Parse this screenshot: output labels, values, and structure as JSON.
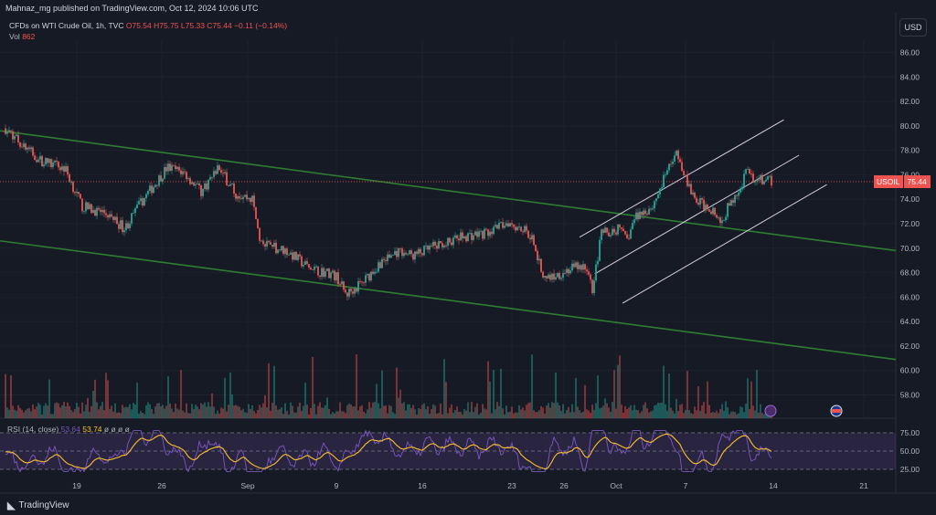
{
  "caption": "Mahnaz_mg published on TradingView.com, Oct 12, 2024 10:06 UTC",
  "legend": {
    "symbol": "CFDs on WTI Crude Oil, 1h, TVC",
    "o": "O75.54",
    "h": "H75.75",
    "l": "L75.33",
    "c": "C75.44",
    "change": "−0.11 (−0.14%)",
    "vol_label": "Vol",
    "vol_value": "862"
  },
  "currency_button": "USD",
  "last_price": {
    "symbol": "USOIL",
    "value": "75.44"
  },
  "rsi": {
    "label": "RSI (14, close)",
    "value1": "53.64",
    "value2": "53.74",
    "placeholders": "ø ø ø ø"
  },
  "brand": "TradingView",
  "colors": {
    "background": "#161a25",
    "up": "#26a69a",
    "down": "#ef5350",
    "trendline": "#2e7d32",
    "channel": "#d9cde0",
    "rsi_line": "#7e57c2",
    "rsi_ma": "#fbc02d"
  },
  "chart_data": {
    "type": "candlestick",
    "price_axis": {
      "ticks": [
        "86.00",
        "84.00",
        "82.00",
        "80.00",
        "78.00",
        "76.00",
        "74.00",
        "72.00",
        "70.00",
        "68.00",
        "66.00",
        "64.00",
        "62.00",
        "60.00",
        "58.00"
      ],
      "ylim": [
        56,
        88
      ]
    },
    "time_axis": {
      "ticks": [
        "19",
        "26",
        "Sep",
        "9",
        "16",
        "23",
        "26",
        "Oct",
        "7",
        "14",
        "21"
      ]
    },
    "price_path": [
      [
        0,
        79.8
      ],
      [
        0.04,
        77.2
      ],
      [
        0.07,
        76.5
      ],
      [
        0.09,
        73.4
      ],
      [
        0.12,
        72.8
      ],
      [
        0.14,
        71.6
      ],
      [
        0.16,
        73.8
      ],
      [
        0.19,
        76.6
      ],
      [
        0.21,
        76.2
      ],
      [
        0.23,
        74.6
      ],
      [
        0.25,
        76.6
      ],
      [
        0.27,
        74.5
      ],
      [
        0.29,
        74.0
      ],
      [
        0.3,
        70.3
      ],
      [
        0.33,
        69.8
      ],
      [
        0.36,
        68.2
      ],
      [
        0.38,
        68.0
      ],
      [
        0.39,
        67.6
      ],
      [
        0.4,
        66.2
      ],
      [
        0.42,
        67.2
      ],
      [
        0.44,
        68.8
      ],
      [
        0.46,
        69.7
      ],
      [
        0.48,
        69.4
      ],
      [
        0.51,
        70.3
      ],
      [
        0.54,
        71.0
      ],
      [
        0.57,
        71.3
      ],
      [
        0.59,
        72.2
      ],
      [
        0.61,
        71.5
      ],
      [
        0.62,
        70.8
      ],
      [
        0.63,
        67.9
      ],
      [
        0.64,
        67.6
      ],
      [
        0.66,
        68.2
      ],
      [
        0.68,
        68.6
      ],
      [
        0.69,
        66.6
      ],
      [
        0.7,
        71.2
      ],
      [
        0.72,
        71.6
      ],
      [
        0.73,
        70.6
      ],
      [
        0.74,
        72.6
      ],
      [
        0.76,
        73.4
      ],
      [
        0.77,
        75.0
      ],
      [
        0.78,
        76.7
      ],
      [
        0.79,
        77.8
      ],
      [
        0.8,
        75.6
      ],
      [
        0.81,
        73.9
      ],
      [
        0.83,
        73.2
      ],
      [
        0.84,
        71.8
      ],
      [
        0.85,
        73.6
      ],
      [
        0.86,
        74.2
      ],
      [
        0.87,
        76.2
      ],
      [
        0.88,
        75.6
      ],
      [
        0.89,
        75.6
      ],
      [
        0.9,
        75.44
      ]
    ],
    "trendlines": [
      {
        "name": "",
        "from": [
          0.0,
          79.6
        ],
        "to": [
          1.0,
          69.8
        ]
      },
      {
        "name": "",
        "from": [
          0.0,
          70.6
        ],
        "to": [
          1.0,
          60.9
        ]
      }
    ],
    "channel": [
      {
        "from": [
          0.647,
          70.9
        ],
        "to": [
          0.875,
          80.5
        ]
      },
      {
        "from": [
          0.664,
          67.9
        ],
        "to": [
          0.892,
          77.6
        ]
      },
      {
        "from": [
          0.695,
          65.5
        ],
        "to": [
          0.923,
          75.2
        ]
      }
    ],
    "rsi": {
      "levels": [
        "75.00",
        "50.00",
        "25.00"
      ],
      "current": 53.64,
      "ma": 53.74
    },
    "volume": {
      "label": "Vol",
      "last": 862
    }
  }
}
